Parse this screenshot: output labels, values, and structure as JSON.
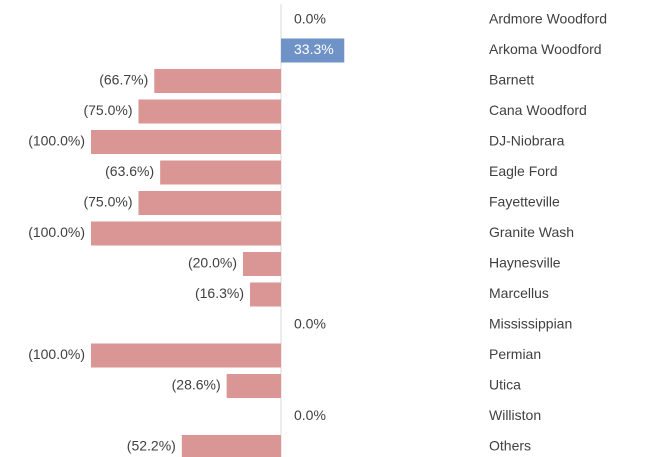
{
  "chart_data": {
    "type": "bar",
    "orientation": "horizontal",
    "categories": [
      "Ardmore Woodford",
      "Arkoma Woodford",
      "Barnett",
      "Cana Woodford",
      "DJ-Niobrara",
      "Eagle Ford",
      "Fayetteville",
      "Granite Wash",
      "Haynesville",
      "Marcellus",
      "Mississippian",
      "Permian",
      "Utica",
      "Williston",
      "Others"
    ],
    "values": [
      0,
      33.3,
      -66.7,
      -75,
      -100,
      -63.6,
      -75,
      -100,
      -20,
      -16.3,
      0,
      -100,
      -28.6,
      0,
      -52.2
    ],
    "value_labels": [
      "0.0%",
      "33.3%",
      "(66.7%)",
      "(75.0%)",
      "(100.0%)",
      "(63.6%)",
      "(75.0%)",
      "(100.0%)",
      "(20.0%)",
      "(16.3%)",
      "0.0%",
      "(100.0%)",
      "(28.6%)",
      "0.0%",
      "(52.2%)"
    ],
    "positive_color": "#6f93c6",
    "negative_color": "#d99694"
  }
}
